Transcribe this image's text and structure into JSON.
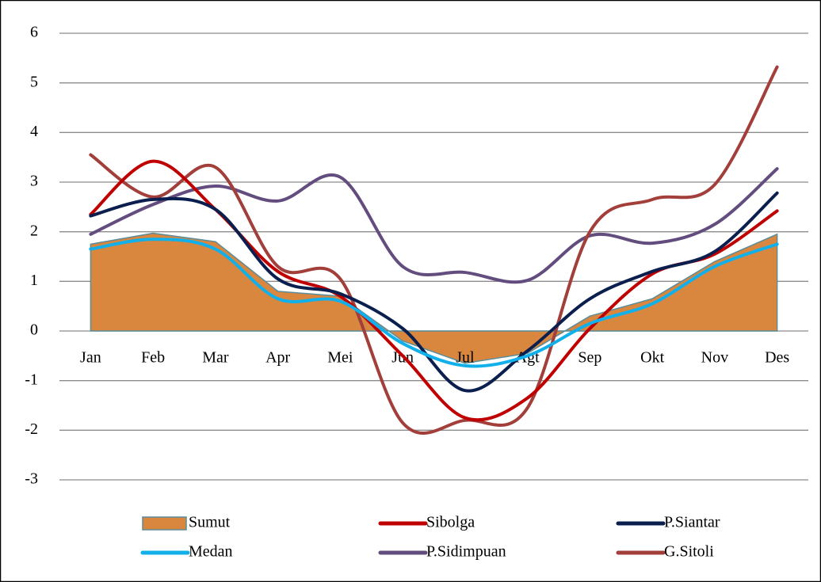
{
  "chart_data": {
    "type": "line",
    "categories": [
      "Jan",
      "Feb",
      "Mar",
      "Apr",
      "Mei",
      "Jun",
      "Jul",
      "Agt",
      "Sep",
      "Okt",
      "Nov",
      "Des"
    ],
    "series": [
      {
        "name": "Sumut",
        "color": "#d9873f",
        "area": true,
        "values": [
          1.75,
          1.97,
          1.8,
          0.8,
          0.7,
          -0.2,
          -0.65,
          -0.45,
          0.3,
          0.65,
          1.4,
          1.95
        ]
      },
      {
        "name": "Sibolga",
        "color": "#c00000",
        "values": [
          2.35,
          3.42,
          2.45,
          1.2,
          0.7,
          -0.5,
          -1.75,
          -1.35,
          0.05,
          1.15,
          1.55,
          2.42
        ]
      },
      {
        "name": "P.Siantar",
        "color": "#0b1f4f",
        "values": [
          2.32,
          2.65,
          2.45,
          1.05,
          0.75,
          0.05,
          -1.2,
          -0.4,
          0.65,
          1.2,
          1.6,
          2.78
        ]
      },
      {
        "name": "Medan",
        "color": "#11b0ea",
        "values": [
          1.65,
          1.85,
          1.65,
          0.65,
          0.6,
          -0.25,
          -0.7,
          -0.5,
          0.15,
          0.55,
          1.3,
          1.75
        ]
      },
      {
        "name": "P.Sidimpuan",
        "color": "#634d7e",
        "values": [
          1.95,
          2.55,
          2.92,
          2.62,
          3.1,
          1.3,
          1.18,
          1.02,
          1.92,
          1.77,
          2.15,
          3.27
        ]
      },
      {
        "name": "G.Sitoli",
        "color": "#a33f3b",
        "values": [
          3.55,
          2.7,
          3.3,
          1.3,
          1.05,
          -1.85,
          -1.8,
          -1.55,
          2.0,
          2.65,
          2.95,
          5.32
        ]
      }
    ],
    "ylim": [
      -3,
      6
    ],
    "yticks": [
      -3,
      -2,
      -1,
      0,
      1,
      2,
      3,
      4,
      5,
      6
    ],
    "grid": true
  }
}
